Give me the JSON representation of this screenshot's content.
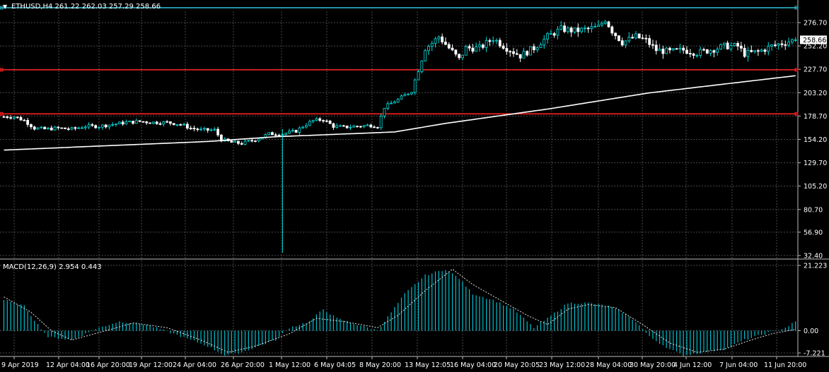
{
  "header": {
    "arrow": "▼",
    "symbol": "ETHUSD,H4",
    "ohlc": "261.22 262.03 257.29 258.66",
    "title": "ETHUSD,H4  261.22 262.03 257.29 258.66"
  },
  "price_axis": {
    "ticks": [
      "276.70",
      "252.20",
      "227.70",
      "203.20",
      "178.70",
      "154.20",
      "129.70",
      "105.20",
      "80.70",
      "56.90",
      "32.40"
    ],
    "current_label": "258.66"
  },
  "macd_axis": {
    "title": "MACD(12,26,9) 2.954 0.443",
    "ticks": [
      "21.223",
      "0.00",
      "-7.221"
    ]
  },
  "time_axis": {
    "labels": [
      "9 Apr 2019",
      "12 Apr 04:00",
      "16 Apr 20:00",
      "19 Apr 12:00",
      "24 Apr 04:00",
      "26 Apr 20:00",
      "1 May 12:00",
      "6 May 04:05",
      "8 May 20:00",
      "13 May 12:05",
      "16 May 04:00",
      "20 May 20:05",
      "23 May 12:00",
      "28 May 04:00",
      "30 May 20:00",
      "4 Jun 12:00",
      "7 Jun 04:00",
      "11 Jun 20:00"
    ]
  },
  "colors": {
    "background": "#000000",
    "grid": "#4a4a4a",
    "foreground": "#ffffff",
    "bull": "#00e0e0",
    "bear": "#ffffff",
    "hline_cyan": "#2ab6c8",
    "hline_red": "#ff2020",
    "ma": "#ffffff",
    "macd_hist": "#00c0d0",
    "macd_signal": "#e0e0e0"
  },
  "horizontal_lines": [
    {
      "price": 292.3,
      "color": "cyan"
    },
    {
      "price": 227.2,
      "color": "red"
    },
    {
      "price": 181.0,
      "color": "red"
    }
  ],
  "chart_data": {
    "type": "candlestick",
    "symbol": "ETHUSD",
    "timeframe": "H4",
    "ylim": [
      32.4,
      288.0
    ],
    "price_key_points": [
      [
        0,
        178
      ],
      [
        3,
        178
      ],
      [
        6,
        174
      ],
      [
        9,
        166
      ],
      [
        12,
        165
      ],
      [
        16,
        166
      ],
      [
        20,
        165
      ],
      [
        24,
        168
      ],
      [
        28,
        168
      ],
      [
        32,
        170
      ],
      [
        36,
        172
      ],
      [
        40,
        173
      ],
      [
        44,
        172
      ],
      [
        48,
        172
      ],
      [
        52,
        170
      ],
      [
        55,
        166
      ],
      [
        58,
        164
      ],
      [
        62,
        164
      ],
      [
        64,
        154
      ],
      [
        67,
        151
      ],
      [
        70,
        150
      ],
      [
        74,
        154
      ],
      [
        78,
        160
      ],
      [
        82,
        160
      ],
      [
        86,
        163
      ],
      [
        88,
        168
      ],
      [
        91,
        174
      ],
      [
        94,
        175
      ],
      [
        97,
        168
      ],
      [
        100,
        167
      ],
      [
        104,
        168
      ],
      [
        108,
        169
      ],
      [
        110,
        168
      ],
      [
        112,
        188
      ],
      [
        116,
        196
      ],
      [
        120,
        205
      ],
      [
        122,
        228
      ],
      [
        124,
        250
      ],
      [
        126,
        255
      ],
      [
        128,
        262
      ],
      [
        131,
        250
      ],
      [
        134,
        238
      ],
      [
        136,
        250
      ],
      [
        140,
        250
      ],
      [
        144,
        260
      ],
      [
        148,
        250
      ],
      [
        152,
        242
      ],
      [
        156,
        250
      ],
      [
        160,
        262
      ],
      [
        164,
        270
      ],
      [
        168,
        268
      ],
      [
        172,
        270
      ],
      [
        175,
        272
      ],
      [
        177,
        280
      ],
      [
        179,
        268
      ],
      [
        182,
        256
      ],
      [
        186,
        262
      ],
      [
        189,
        258
      ],
      [
        192,
        248
      ],
      [
        196,
        246
      ],
      [
        200,
        248
      ],
      [
        204,
        245
      ],
      [
        208,
        248
      ],
      [
        212,
        252
      ],
      [
        216,
        252
      ],
      [
        218,
        244
      ],
      [
        222,
        246
      ],
      [
        226,
        252
      ],
      [
        230,
        256
      ],
      [
        233,
        258.66
      ]
    ],
    "moving_average": [
      [
        0,
        143
      ],
      [
        60,
        152
      ],
      [
        80,
        157
      ],
      [
        115,
        162
      ],
      [
        130,
        171
      ],
      [
        160,
        186
      ],
      [
        190,
        203
      ],
      [
        233,
        221
      ]
    ],
    "macd": {
      "histogram_key_points": [
        [
          0,
          10
        ],
        [
          6,
          8
        ],
        [
          10,
          2
        ],
        [
          13,
          -2
        ],
        [
          20,
          -3
        ],
        [
          28,
          1
        ],
        [
          34,
          3
        ],
        [
          42,
          2
        ],
        [
          50,
          -1
        ],
        [
          60,
          -5
        ],
        [
          65,
          -8
        ],
        [
          70,
          -7
        ],
        [
          80,
          -3
        ],
        [
          84,
          1
        ],
        [
          90,
          3
        ],
        [
          94,
          7
        ],
        [
          98,
          4
        ],
        [
          104,
          2
        ],
        [
          110,
          0
        ],
        [
          114,
          6
        ],
        [
          118,
          12
        ],
        [
          124,
          18
        ],
        [
          130,
          20
        ],
        [
          134,
          17
        ],
        [
          138,
          12
        ],
        [
          144,
          10
        ],
        [
          150,
          7
        ],
        [
          156,
          1
        ],
        [
          160,
          4
        ],
        [
          166,
          9
        ],
        [
          172,
          9
        ],
        [
          178,
          8
        ],
        [
          182,
          6
        ],
        [
          186,
          3
        ],
        [
          190,
          -2
        ],
        [
          196,
          -6
        ],
        [
          200,
          -8
        ],
        [
          206,
          -7
        ],
        [
          212,
          -6
        ],
        [
          218,
          -3
        ],
        [
          224,
          -1
        ],
        [
          230,
          1
        ],
        [
          233,
          2.954
        ]
      ],
      "signal_key_points": [
        [
          0,
          11
        ],
        [
          8,
          6
        ],
        [
          14,
          0
        ],
        [
          20,
          -3
        ],
        [
          30,
          0
        ],
        [
          38,
          2.5
        ],
        [
          48,
          1
        ],
        [
          58,
          -3
        ],
        [
          66,
          -7
        ],
        [
          74,
          -5
        ],
        [
          84,
          -1
        ],
        [
          92,
          4
        ],
        [
          100,
          3
        ],
        [
          110,
          1
        ],
        [
          116,
          5
        ],
        [
          124,
          13
        ],
        [
          132,
          20
        ],
        [
          138,
          15
        ],
        [
          146,
          10
        ],
        [
          154,
          5
        ],
        [
          160,
          2
        ],
        [
          166,
          7
        ],
        [
          172,
          8.5
        ],
        [
          180,
          7.5
        ],
        [
          188,
          2
        ],
        [
          196,
          -4
        ],
        [
          204,
          -7
        ],
        [
          212,
          -6
        ],
        [
          220,
          -3
        ],
        [
          226,
          -1
        ],
        [
          233,
          0.443
        ]
      ],
      "ylim": [
        -7.221,
        21.223
      ],
      "params": "12,26,9",
      "value": 2.954,
      "signal_value": 0.443
    }
  }
}
